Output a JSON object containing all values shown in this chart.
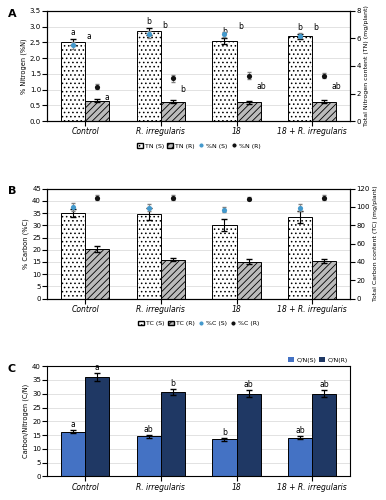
{
  "categories": [
    "Control",
    "R. irregularis",
    "18",
    "18 + R. irregularis"
  ],
  "panel_A": {
    "ylabel_left": "% Nitrogen (%N)",
    "ylabel_right": "Total Nitrogen content (TN) (mg/plant)",
    "ylim_left": [
      0,
      3.5
    ],
    "ylim_right": [
      0,
      8
    ],
    "yticks_left": [
      0,
      0.5,
      1.0,
      1.5,
      2.0,
      2.5,
      3.0,
      3.5
    ],
    "yticks_right": [
      0,
      2,
      4,
      6,
      8
    ],
    "bar_shoot": [
      2.52,
      2.85,
      2.55,
      2.7
    ],
    "bar_root": [
      0.65,
      0.62,
      0.6,
      0.62
    ],
    "bar_shoot_se": [
      0.1,
      0.12,
      0.1,
      0.08
    ],
    "bar_root_se": [
      0.06,
      0.04,
      0.05,
      0.04
    ],
    "dot_shoot": [
      5.5,
      6.3,
      6.3,
      6.2
    ],
    "dot_root": [
      2.5,
      3.1,
      3.3,
      3.3
    ],
    "dot_shoot_se": [
      0.25,
      0.25,
      0.2,
      0.18
    ],
    "dot_root_se": [
      0.2,
      0.25,
      0.25,
      0.2
    ],
    "bar_shoot_labels": [
      "a",
      "b",
      "b",
      "b"
    ],
    "dot_shoot_labels": [
      "a",
      "b",
      "b",
      "b"
    ],
    "dot_root_labels": [
      "a",
      "b",
      "ab",
      "ab"
    ]
  },
  "panel_B": {
    "ylabel_left": "% Carbon (%C)",
    "ylabel_right": "Total Carbon content (TC) (mg/plant)",
    "ylim_left": [
      0,
      45
    ],
    "ylim_right": [
      0,
      120
    ],
    "yticks_left": [
      0,
      5,
      10,
      15,
      20,
      25,
      30,
      35,
      40,
      45
    ],
    "yticks_right": [
      0,
      20,
      40,
      60,
      80,
      100,
      120
    ],
    "bar_shoot": [
      35.0,
      34.5,
      30.0,
      33.5
    ],
    "bar_root": [
      20.3,
      16.0,
      15.2,
      15.5
    ],
    "bar_shoot_se": [
      1.5,
      2.5,
      2.5,
      2.5
    ],
    "bar_root_se": [
      1.2,
      0.7,
      1.2,
      0.8
    ],
    "dot_shoot": [
      100,
      99,
      97,
      99
    ],
    "dot_root": [
      110,
      110,
      109,
      110
    ],
    "dot_shoot_se": [
      4,
      4,
      3,
      4
    ],
    "dot_root_se": [
      3,
      3,
      2,
      3
    ]
  },
  "panel_C": {
    "ylabel": "Carbon/Nitrogen (C/N)",
    "ylim": [
      0,
      40
    ],
    "yticks": [
      0,
      5,
      10,
      15,
      20,
      25,
      30,
      35,
      40
    ],
    "bar_shoot": [
      16.2,
      14.5,
      13.5,
      14.0
    ],
    "bar_root": [
      36.0,
      30.7,
      30.0,
      30.0
    ],
    "bar_shoot_se": [
      0.6,
      0.6,
      0.5,
      0.5
    ],
    "bar_root_se": [
      1.5,
      1.0,
      1.2,
      1.2
    ],
    "bar_shoot_labels": [
      "a",
      "ab",
      "b",
      "ab"
    ],
    "bar_root_labels": [
      "a",
      "b",
      "ab",
      "ab"
    ],
    "color_shoot": "#4472C4",
    "color_root": "#1F3864"
  },
  "dot_shoot_color": "#4499CC",
  "dot_root_color": "#111111",
  "bar_width": 0.32
}
